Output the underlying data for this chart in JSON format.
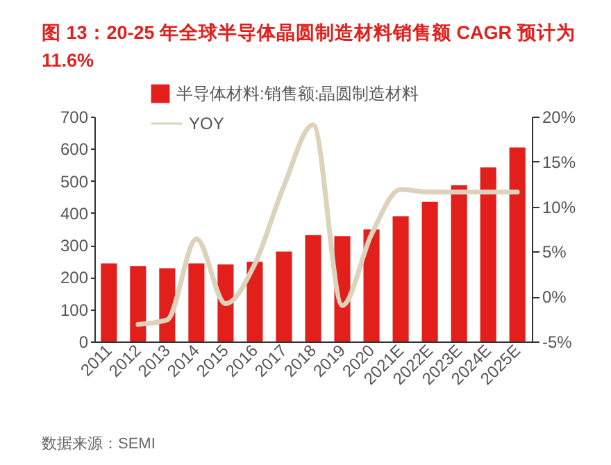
{
  "chart_data": {
    "type": "bar",
    "title": "图 13：20-25 年全球半导体晶圆制造材料销售额 CAGR 预计为 11.6%",
    "categories": [
      "2011",
      "2012",
      "2013",
      "2014",
      "2015",
      "2016",
      "2017",
      "2018",
      "2019",
      "2020",
      "2021E",
      "2022E",
      "2023E",
      "2024E",
      "2025E"
    ],
    "series": [
      {
        "name": "半导体材料:销售额:晶圆制造材料",
        "color": "#e21f1b",
        "values": [
          243,
          235,
          228,
          243,
          240,
          248,
          280,
          331,
          328,
          349,
          390,
          435,
          486,
          542,
          604
        ]
      },
      {
        "name": "YOY",
        "type": "line",
        "axis": "y2",
        "color": "#ddd3bc",
        "values": [
          null,
          -3.1,
          -2.6,
          6.4,
          -0.8,
          3.6,
          12.3,
          19.1,
          -1.0,
          6.9,
          11.9,
          11.6,
          11.6,
          11.6,
          11.6
        ]
      }
    ],
    "ylim": [
      0,
      700
    ],
    "yticks": [
      0,
      100,
      200,
      300,
      400,
      500,
      600,
      700
    ],
    "y2lim": [
      -5,
      20
    ],
    "y2ticks": [
      {
        "value": -5,
        "label": "-5%"
      },
      {
        "value": 0,
        "label": "0%"
      },
      {
        "value": 5,
        "label": "5%"
      },
      {
        "value": 10,
        "label": "10%"
      },
      {
        "value": 15,
        "label": "15%"
      },
      {
        "value": 20,
        "label": "20%"
      }
    ],
    "legend": "top left",
    "grid": false,
    "annotations": [
      "数据来源：SEMI"
    ]
  }
}
